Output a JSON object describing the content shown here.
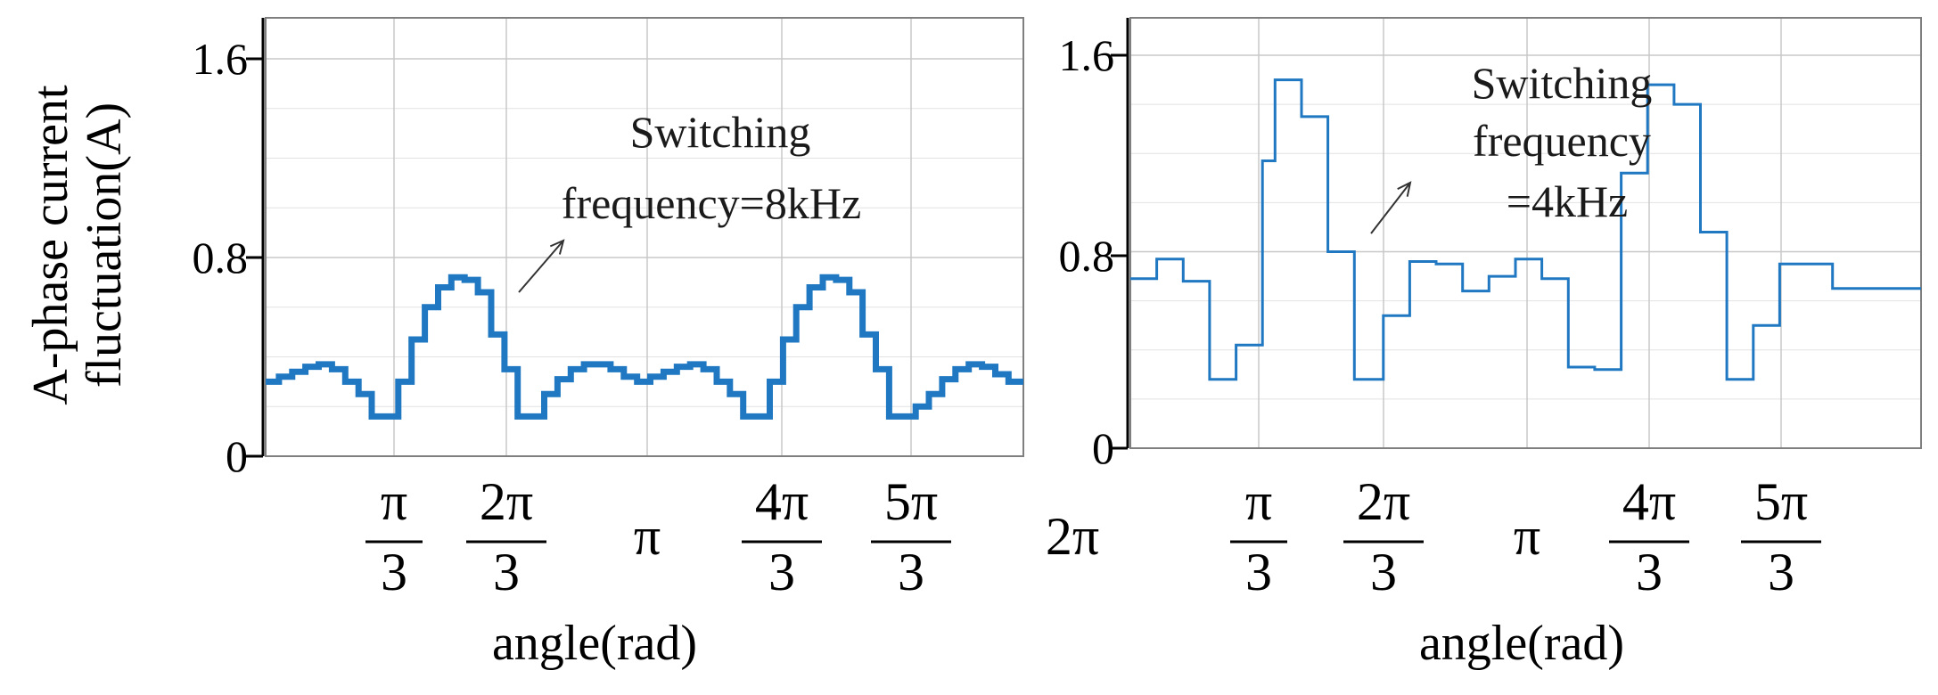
{
  "chart_data": [
    {
      "type": "line",
      "ylabel": "A-phase current fluctuation(A)",
      "xlabel": "angle(rad)",
      "ylim": [
        0,
        1.6
      ],
      "yticks": [
        "0",
        "0.8",
        "1.6"
      ],
      "xlim": [
        0,
        6.2832
      ],
      "xticks": [
        {
          "value": 1.0472,
          "num": "π",
          "den": "3"
        },
        {
          "value": 2.0944,
          "num": "2π",
          "den": "3"
        },
        {
          "value": 3.1416,
          "num": "π",
          "den": ""
        },
        {
          "value": 4.1888,
          "num": "4π",
          "den": "3"
        },
        {
          "value": 5.236,
          "num": "5π",
          "den": "3"
        },
        {
          "value": 6.2832,
          "num": "2π",
          "den": ""
        }
      ],
      "grid": true,
      "annotation": [
        "Switching",
        "frequency=8kHz"
      ],
      "series": [
        {
          "color": "#1f78c1",
          "step": true,
          "x": [
            0,
            0.11,
            0.22,
            0.33,
            0.44,
            0.55,
            0.66,
            0.77,
            0.88,
            0.99,
            1.1,
            1.21,
            1.32,
            1.43,
            1.54,
            1.65,
            1.76,
            1.87,
            1.98,
            2.09,
            2.2,
            2.31,
            2.42,
            2.53,
            2.64,
            2.75,
            2.86,
            2.97,
            3.08,
            3.19,
            3.3,
            3.41,
            3.52,
            3.63,
            3.74,
            3.85,
            3.96,
            4.07,
            4.18,
            4.29,
            4.4,
            4.51,
            4.62,
            4.73,
            4.84,
            4.95,
            5.06,
            5.17,
            5.28,
            5.39,
            5.5,
            5.61,
            5.72,
            5.83,
            5.94,
            6.05,
            6.16
          ],
          "y": [
            0.3,
            0.32,
            0.34,
            0.36,
            0.37,
            0.35,
            0.3,
            0.25,
            0.16,
            0.16,
            0.3,
            0.47,
            0.6,
            0.68,
            0.72,
            0.71,
            0.66,
            0.49,
            0.35,
            0.16,
            0.16,
            0.25,
            0.31,
            0.35,
            0.37,
            0.37,
            0.35,
            0.32,
            0.3,
            0.32,
            0.34,
            0.36,
            0.37,
            0.35,
            0.3,
            0.25,
            0.16,
            0.16,
            0.3,
            0.47,
            0.6,
            0.68,
            0.72,
            0.71,
            0.66,
            0.49,
            0.35,
            0.16,
            0.16,
            0.2,
            0.25,
            0.31,
            0.35,
            0.37,
            0.36,
            0.33,
            0.3
          ]
        }
      ]
    },
    {
      "type": "line",
      "ylabel": "",
      "xlabel": "angle(rad)",
      "ylim": [
        0,
        1.6
      ],
      "yticks": [
        "0",
        "0.8",
        "1.6"
      ],
      "xlim": [
        0,
        6.2832
      ],
      "xticks": [
        {
          "value": 1.0472,
          "num": "π",
          "den": "3"
        },
        {
          "value": 2.0944,
          "num": "2π",
          "den": "3"
        },
        {
          "value": 3.1416,
          "num": "π",
          "den": ""
        },
        {
          "value": 4.1888,
          "num": "4π",
          "den": "3"
        },
        {
          "value": 5.236,
          "num": "5π",
          "den": "3"
        },
        {
          "value": 6.2832,
          "num": "2π",
          "den": ""
        }
      ],
      "grid": true,
      "annotation": [
        "Switching",
        "frequency",
        "=4kHz"
      ],
      "series": [
        {
          "color": "#1f78c1",
          "step": true,
          "x": [
            0,
            0.21,
            0.42,
            0.63,
            0.84,
            1.05,
            1.15,
            1.36,
            1.57,
            1.78,
            2.01,
            2.22,
            2.43,
            2.64,
            2.85,
            3.06,
            3.27,
            3.48,
            3.69,
            3.9,
            4.11,
            4.32,
            4.53,
            4.74,
            4.95,
            5.16,
            5.37,
            5.58,
            5.79,
            6.0,
            6.21
          ],
          "y": [
            0.69,
            0.77,
            0.68,
            0.28,
            0.42,
            1.17,
            1.5,
            1.35,
            0.8,
            0.28,
            0.54,
            0.76,
            0.75,
            0.64,
            0.7,
            0.77,
            0.69,
            0.33,
            0.32,
            1.12,
            1.48,
            1.4,
            0.88,
            0.28,
            0.5,
            0.75,
            0.75,
            0.65,
            0.65,
            0.65,
            0.65
          ]
        }
      ]
    }
  ]
}
